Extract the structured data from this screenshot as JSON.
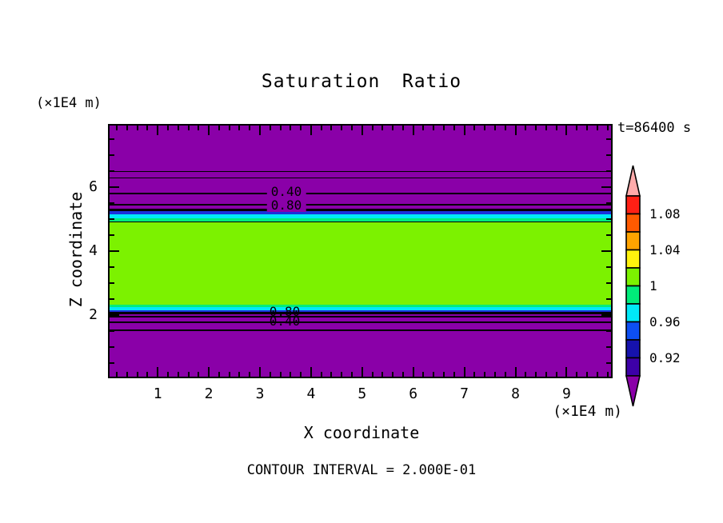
{
  "title": "Saturation Ratio",
  "time_label": "t=86400 s",
  "x_axis": {
    "title": "X coordinate",
    "unit": "(×1E4 m)",
    "ticks": [
      1,
      2,
      3,
      4,
      5,
      6,
      7,
      8,
      9
    ]
  },
  "y_axis": {
    "title": "Z coordinate",
    "unit": "(×1E4 m)",
    "ticks": [
      2,
      4,
      6
    ]
  },
  "footer_note": "CONTOUR INTERVAL = 2.000E-01",
  "contours": {
    "top_labels": [
      "0.40",
      "0.80"
    ],
    "bottom_labels": [
      "0.80",
      "0.40"
    ]
  },
  "colorbar": {
    "tick_labels": [
      "1.08",
      "1.04",
      "1",
      "0.96",
      "0.92"
    ],
    "cell_colors": [
      "#FF2015",
      "#FF5A00",
      "#FFA300",
      "#FFF30D",
      "#7CF200",
      "#00EC7A",
      "#00E9F8",
      "#0D4FF2",
      "#1612AD",
      "#3D00A8"
    ],
    "above_range_color": "#FFABAB",
    "below_range_color": "#8A00A8"
  },
  "colors": {
    "plot_background": "#8A00A8",
    "saturated_band": "#7CF200",
    "transition_cyan": "#00E9F8",
    "transition_spring_green": "#00EC7A",
    "transition_blue": "#1B30DC",
    "contour_line": "#000000"
  },
  "chart_data": {
    "type": "heatmap",
    "title": "Saturation Ratio",
    "xlabel": "X coordinate (×1E4 m)",
    "ylabel": "Z coordinate (×1E4 m)",
    "xlim": [
      0,
      9.9
    ],
    "ylim": [
      0,
      8
    ],
    "annotation": "t=86400 s",
    "contour_interval": 0.2,
    "colorbar_tick_values": [
      1.08,
      1.04,
      1,
      0.96,
      0.92
    ],
    "colorbar_range": [
      0.9,
      1.1
    ],
    "colorbar_cell_step": 0.02,
    "legend_position": "right",
    "field_structure": "horizontal bands, uniform along x",
    "bands_by_z": [
      {
        "z_from": 5.45,
        "z_to": 8.0,
        "saturation_ratio": "< 0.90 (purple, below colorbar range)"
      },
      {
        "z_from": 4.92,
        "z_to": 5.45,
        "saturation_ratio": "0.90 - 1.00 thin transition (blue/cyan/spring-green strips)"
      },
      {
        "z_from": 2.32,
        "z_to": 4.92,
        "saturation_ratio": "1.00 - 1.02 (green-yellow saturated band)"
      },
      {
        "z_from": 1.95,
        "z_to": 2.32,
        "saturation_ratio": "1.00 - 0.90 thin transition (spring-green/cyan/blue strips)"
      },
      {
        "z_from": 0.0,
        "z_to": 1.95,
        "saturation_ratio": "< 0.90 (purple, below colorbar range)"
      }
    ],
    "contour_line_labels": [
      {
        "value": 0.4,
        "z": 5.83,
        "x_label_center": 3.5
      },
      {
        "value": 0.8,
        "z": 5.45,
        "x_label_center": 3.5
      },
      {
        "value": 0.8,
        "z": 2.07,
        "x_label_center": 3.45
      },
      {
        "value": 0.4,
        "z": 1.79,
        "x_label_center": 3.45
      }
    ]
  }
}
